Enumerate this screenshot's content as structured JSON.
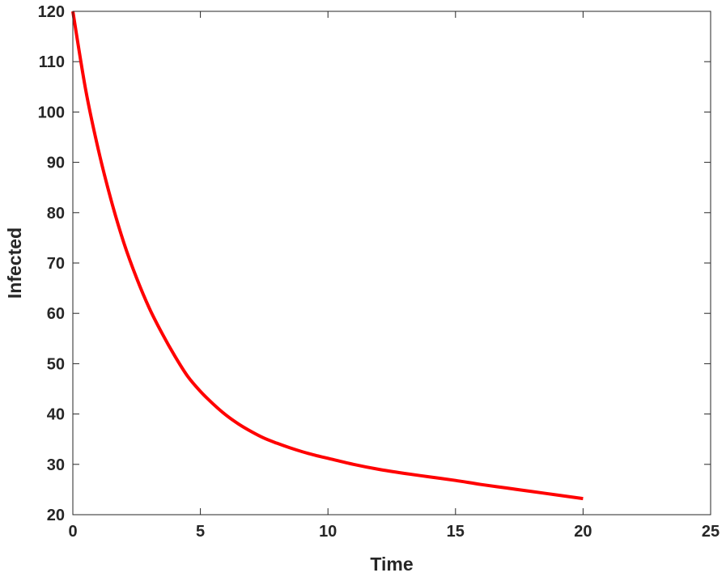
{
  "chart_data": {
    "type": "line",
    "title": "",
    "xlabel": "Time",
    "ylabel": "Infected",
    "xlim": [
      0,
      25
    ],
    "ylim": [
      20,
      120
    ],
    "xticks": [
      0,
      5,
      10,
      15,
      20,
      25
    ],
    "yticks": [
      20,
      30,
      40,
      50,
      60,
      70,
      80,
      90,
      100,
      110,
      120
    ],
    "xtick_labels": [
      "0",
      "5",
      "10",
      "15",
      "20",
      "25"
    ],
    "ytick_labels": [
      "20",
      "30",
      "40",
      "50",
      "60",
      "70",
      "80",
      "90",
      "100",
      "110",
      "120"
    ],
    "grid": false,
    "box": true,
    "series": [
      {
        "color": "#ff0000",
        "x": [
          0,
          0.5,
          1,
          1.5,
          2,
          2.5,
          3,
          3.5,
          4,
          4.5,
          5,
          5.5,
          6,
          6.5,
          7,
          7.5,
          8,
          8.5,
          9,
          9.5,
          10,
          11,
          12,
          13,
          14,
          15,
          16,
          17,
          18,
          19,
          20
        ],
        "y": [
          120,
          104.5,
          92.5,
          82.5,
          74,
          67,
          61,
          56,
          51.5,
          47.5,
          44.5,
          42,
          39.8,
          38,
          36.5,
          35.2,
          34.2,
          33.3,
          32.5,
          31.8,
          31.2,
          30,
          29,
          28.2,
          27.5,
          26.8,
          26,
          25.3,
          24.6,
          23.9,
          23.2
        ]
      }
    ]
  }
}
